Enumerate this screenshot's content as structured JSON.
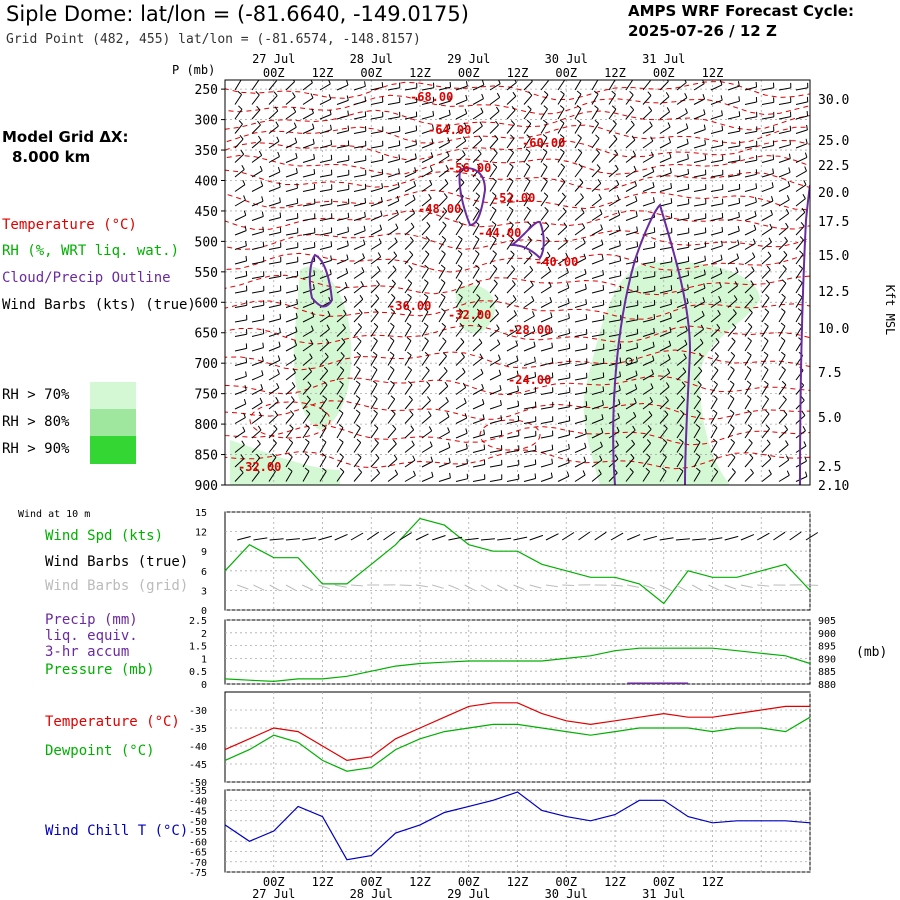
{
  "header": {
    "title": "Siple Dome:  lat/lon = (-81.6640, -149.0175)",
    "subtitle": "Grid Point (482, 455) lat/lon = (-81.6574, -148.8157)",
    "cycle_line1": "AMPS WRF Forecast Cycle:",
    "cycle_line2": "2025-07-26 / 12  Z"
  },
  "legend": {
    "model_grid_line1": "Model Grid ΔX:",
    "model_grid_line2": "8.000 km",
    "temperature": "Temperature (°C)",
    "rh": "RH (%, WRT liq. wat.)",
    "cloud": "Cloud/Precip Outline",
    "wind_barbs": "Wind Barbs (kts) (true)",
    "rh70": "RH > 70%",
    "rh80": "RH > 80%",
    "rh90": "RH > 90%",
    "wind_10m": "Wind at 10 m",
    "wind_spd": "Wind Spd (kts)",
    "wind_barbs_true": "Wind Barbs (true)",
    "wind_barbs_grid": "Wind Barbs (grid)",
    "precip1": "Precip (mm)",
    "precip2": "liq. equiv.",
    "precip3": "3-hr accum",
    "pressure": "Pressure (mb)",
    "temperature2": "Temperature (°C)",
    "dewpoint": "Dewpoint (°C)",
    "wind_chill": "Wind Chill T (°C)"
  },
  "colors": {
    "temp": "#e00000",
    "rh": "#00b000",
    "cloud": "#6a2aa0",
    "windchill": "#0000c0",
    "rh70": "#d4f7d4",
    "rh80": "#9fe69f",
    "rh90": "#33d633"
  },
  "chart_data": [
    {
      "type": "line",
      "panel": "cross-section",
      "xlabel": "",
      "ylabel": "P (mb)",
      "ylabel_right": "Kft MSL",
      "time_ticks": [
        "00Z",
        "12Z",
        "00Z",
        "12Z",
        "00Z",
        "12Z",
        "00Z",
        "12Z",
        "00Z",
        "12Z"
      ],
      "date_ticks": [
        "27 Jul",
        "28 Jul",
        "29 Jul",
        "30 Jul",
        "31 Jul"
      ],
      "pressure_ticks": [
        250,
        300,
        350,
        400,
        450,
        500,
        550,
        600,
        650,
        700,
        750,
        800,
        850,
        900
      ],
      "height_ticks": [
        "30.0",
        "25.0",
        "22.5",
        "20.0",
        "17.5",
        "15.0",
        "12.5",
        "10.0",
        "7.5",
        "5.0",
        "2.5",
        "2.10"
      ],
      "temperature_contour_labels": [
        "-68.00",
        "-64.00",
        "-60.00",
        "-56.00",
        "-52.00",
        "-48.00",
        "-44.00",
        "-40.00",
        "-36.00",
        "-32.00",
        "-28.00",
        "-24.00",
        "-32.00"
      ]
    },
    {
      "type": "line",
      "panel": "wind-10m",
      "ylim": [
        0,
        15
      ],
      "yticks": [
        0,
        3,
        6,
        9,
        12,
        15
      ],
      "series": [
        {
          "name": "Wind Spd (kts)",
          "x_hours": [
            0,
            6,
            12,
            18,
            24,
            30,
            36,
            42,
            48,
            54,
            60,
            66,
            72,
            78,
            84,
            90,
            96,
            102,
            108,
            114,
            120,
            126,
            132,
            138,
            144
          ],
          "values": [
            6,
            10,
            8,
            8,
            4,
            4,
            7,
            10,
            14,
            13,
            10,
            9,
            9,
            7,
            6,
            5,
            5,
            4,
            1,
            6,
            5,
            5,
            6,
            7,
            3
          ]
        }
      ]
    },
    {
      "type": "line",
      "panel": "precip-pressure",
      "ylim": [
        0,
        2.5
      ],
      "yticks": [
        0.0,
        0.5,
        1.0,
        1.5,
        2.0,
        2.5
      ],
      "ylim_right": [
        880,
        905
      ],
      "yticks_right": [
        880,
        885,
        890,
        895,
        900,
        905
      ],
      "series": [
        {
          "name": "Pressure (mb)",
          "x_hours": [
            0,
            6,
            12,
            18,
            24,
            30,
            36,
            42,
            48,
            54,
            60,
            66,
            72,
            78,
            84,
            90,
            96,
            102,
            108,
            114,
            120,
            126,
            132,
            138,
            144
          ],
          "values": [
            882,
            881.5,
            881,
            882,
            882,
            883,
            885,
            887,
            888,
            888.5,
            889,
            889,
            889,
            889,
            890,
            891,
            893,
            894,
            894,
            894,
            894,
            893,
            892,
            891,
            888
          ]
        },
        {
          "name": "Precip (mm)",
          "x_hours": [
            99,
            114
          ],
          "values": [
            0.06,
            0.06
          ]
        }
      ]
    },
    {
      "type": "line",
      "panel": "temperature-dewpoint",
      "ylim": [
        -50,
        -25
      ],
      "yticks": [
        -50,
        -45,
        -40,
        -35,
        -30
      ],
      "series": [
        {
          "name": "Temperature (°C)",
          "x_hours": [
            0,
            6,
            12,
            18,
            24,
            30,
            36,
            42,
            48,
            54,
            60,
            66,
            72,
            78,
            84,
            90,
            96,
            102,
            108,
            114,
            120,
            126,
            132,
            138,
            144
          ],
          "values": [
            -41,
            -38,
            -35,
            -36,
            -40,
            -44,
            -43,
            -38,
            -35,
            -32,
            -29,
            -28,
            -28,
            -31,
            -33,
            -34,
            -33,
            -32,
            -31,
            -32,
            -32,
            -31,
            -30,
            -29,
            -29
          ]
        },
        {
          "name": "Dewpoint (°C)",
          "x_hours": [
            0,
            6,
            12,
            18,
            24,
            30,
            36,
            42,
            48,
            54,
            60,
            66,
            72,
            78,
            84,
            90,
            96,
            102,
            108,
            114,
            120,
            126,
            132,
            138,
            144
          ],
          "values": [
            -44,
            -41,
            -37,
            -39,
            -44,
            -47,
            -46,
            -41,
            -38,
            -36,
            -35,
            -34,
            -34,
            -35,
            -36,
            -37,
            -36,
            -35,
            -35,
            -35,
            -36,
            -35,
            -35,
            -36,
            -32
          ]
        }
      ]
    },
    {
      "type": "line",
      "panel": "wind-chill",
      "ylim": [
        -75,
        -35
      ],
      "yticks": [
        -75,
        -70,
        -65,
        -60,
        -55,
        -50,
        -45,
        -40,
        -35
      ],
      "series": [
        {
          "name": "Wind Chill T (°C)",
          "x_hours": [
            0,
            6,
            12,
            18,
            24,
            30,
            36,
            42,
            48,
            54,
            60,
            66,
            72,
            78,
            84,
            90,
            96,
            102,
            108,
            114,
            120,
            126,
            132,
            138,
            144
          ],
          "values": [
            -52,
            -60,
            -55,
            -43,
            -48,
            -69,
            -67,
            -56,
            -52,
            -46,
            -43,
            -40,
            -36,
            -45,
            -48,
            -50,
            -47,
            -40,
            -40,
            -48,
            -51,
            -50,
            -50,
            -50,
            -51
          ]
        }
      ]
    }
  ]
}
